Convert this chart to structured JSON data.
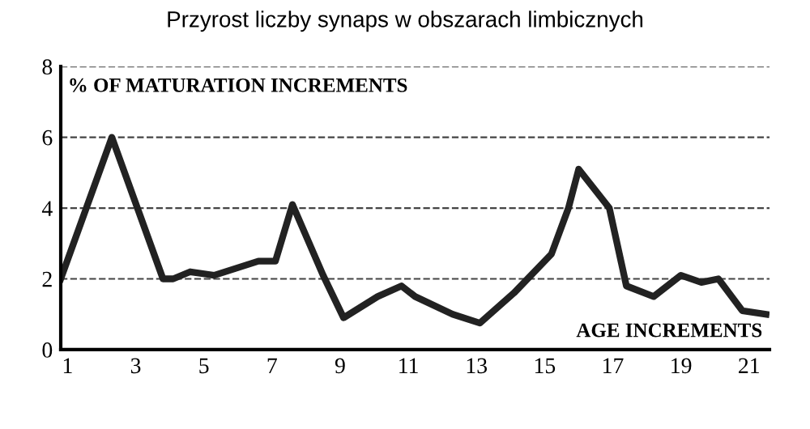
{
  "chart_data": {
    "type": "line",
    "title": "Przyrost liczby synaps w obszarach limbicznych",
    "ylabel": "% OF MATURATION INCREMENTS",
    "xlabel": "AGE INCREMENTS",
    "x": [
      0.8,
      2.3,
      3.8,
      4.1,
      4.6,
      5.3,
      6.6,
      7.1,
      7.6,
      8.5,
      9.1,
      10.1,
      10.8,
      11.2,
      12.3,
      13.1,
      14.1,
      15.2,
      15.7,
      16.0,
      16.9,
      17.4,
      18.2,
      19.0,
      19.6,
      20.1,
      20.8,
      21.5
    ],
    "series": [
      {
        "color": "#222222",
        "values": [
          2.0,
          6.0,
          2.0,
          2.0,
          2.2,
          2.1,
          2.5,
          2.5,
          4.1,
          2.1,
          0.9,
          1.5,
          1.8,
          1.5,
          1.0,
          0.75,
          1.6,
          2.7,
          4.0,
          5.1,
          4.0,
          1.8,
          1.5,
          2.1,
          1.9,
          2.0,
          1.1,
          1.0
        ]
      }
    ],
    "xlim": [
      0.8,
      21.6
    ],
    "xticks": [
      1,
      3,
      5,
      7,
      9,
      11,
      13,
      15,
      17,
      19,
      21
    ],
    "ylim": [
      0,
      8
    ],
    "yticks": [
      0,
      2,
      4,
      6,
      8
    ],
    "grid": "y",
    "line_style": "solid"
  }
}
